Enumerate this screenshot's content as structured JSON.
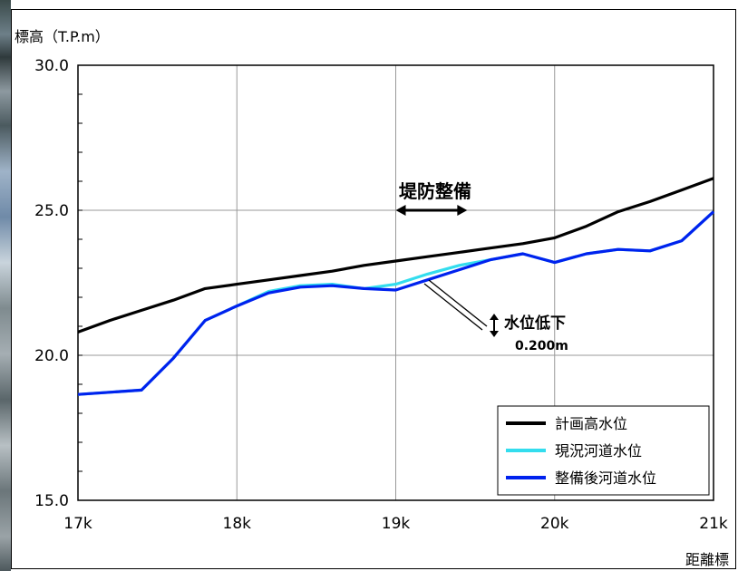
{
  "chart_data": {
    "type": "line",
    "ylabel": "標高（T.P.m）",
    "xlabel": "距離標",
    "ylim": [
      15,
      30
    ],
    "xlim": [
      17,
      21
    ],
    "yticks": [
      15,
      20,
      25,
      30
    ],
    "ytick_labels": [
      "15.0",
      "20.0",
      "25.0",
      "30.0"
    ],
    "xticks": [
      17,
      18,
      19,
      20,
      21
    ],
    "xtick_labels": [
      "17k",
      "18k",
      "19k",
      "20k",
      "21k"
    ],
    "grid": true,
    "legend_position": "bottom-right",
    "series": [
      {
        "name": "計画高水位",
        "color": "#000000",
        "x": [
          17.0,
          17.2,
          17.4,
          17.6,
          17.8,
          18.0,
          18.2,
          18.4,
          18.6,
          18.8,
          19.0,
          19.2,
          19.4,
          19.6,
          19.8,
          20.0,
          20.2,
          20.4,
          20.6,
          20.8,
          21.0
        ],
        "y": [
          20.8,
          21.2,
          21.55,
          21.9,
          22.3,
          22.45,
          22.6,
          22.75,
          22.9,
          23.1,
          23.25,
          23.4,
          23.55,
          23.7,
          23.85,
          24.05,
          24.45,
          24.95,
          25.3,
          25.7,
          26.1
        ]
      },
      {
        "name": "現況河道水位",
        "color": "#33ddee",
        "x": [
          17.0,
          17.4,
          17.6,
          17.8,
          18.0,
          18.2,
          18.4,
          18.6,
          18.8,
          19.0,
          19.2,
          19.4,
          19.6,
          19.8,
          20.0,
          20.2,
          20.4,
          20.6,
          20.8,
          21.0
        ],
        "y": [
          18.65,
          18.8,
          19.9,
          21.2,
          21.7,
          22.2,
          22.4,
          22.45,
          22.3,
          22.45,
          22.8,
          23.1,
          23.3,
          23.5,
          23.2,
          23.5,
          23.65,
          23.6,
          23.95,
          24.95
        ]
      },
      {
        "name": "整備後河道水位",
        "color": "#0022ee",
        "x": [
          17.0,
          17.4,
          17.6,
          17.8,
          18.0,
          18.2,
          18.4,
          18.6,
          18.8,
          19.0,
          19.2,
          19.4,
          19.6,
          19.8,
          20.0,
          20.2,
          20.4,
          20.6,
          20.8,
          21.0
        ],
        "y": [
          18.65,
          18.8,
          19.9,
          21.2,
          21.7,
          22.15,
          22.35,
          22.4,
          22.3,
          22.25,
          22.6,
          22.95,
          23.3,
          23.5,
          23.2,
          23.5,
          23.65,
          23.6,
          23.95,
          24.95
        ]
      }
    ],
    "annotations": [
      {
        "text": "堤防整備",
        "x_range": [
          19.0,
          19.45
        ],
        "y": 25.0
      },
      {
        "text": "水位低下",
        "value_text": "0.200m"
      }
    ]
  }
}
